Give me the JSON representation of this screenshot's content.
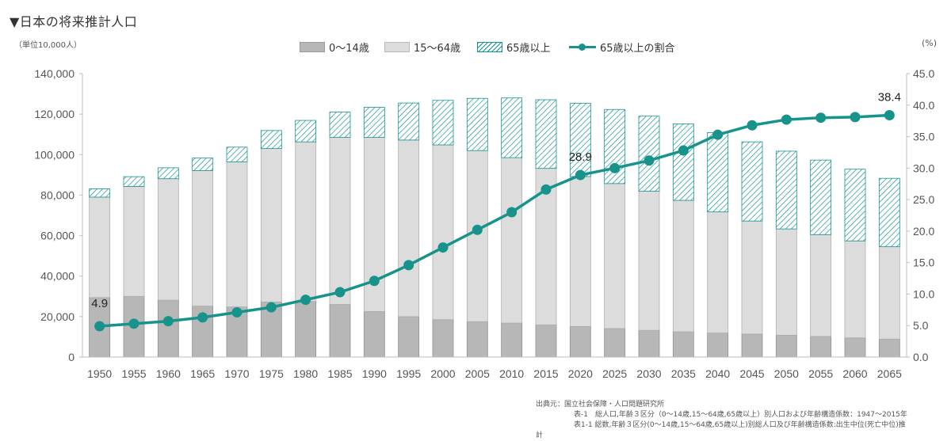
{
  "page_title": "▼日本の将来推計人口",
  "chart_data": {
    "type": "bar",
    "title": "日本の将来推計人口",
    "left_unit": "（単位10,000人）",
    "right_unit": "(%)",
    "categories": [
      "1950",
      "1955",
      "1960",
      "1965",
      "1970",
      "1975",
      "1980",
      "1985",
      "1990",
      "1995",
      "2000",
      "2005",
      "2010",
      "2015",
      "2020",
      "2025",
      "2030",
      "2035",
      "2040",
      "2045",
      "2050",
      "2055",
      "2060",
      "2065"
    ],
    "series": [
      {
        "name": "0〜14歳",
        "kind": "stacked-bar",
        "color": "#b7b7b7",
        "values": [
          29400,
          30000,
          28100,
          25200,
          24800,
          27200,
          27500,
          26000,
          22500,
          20000,
          18500,
          17500,
          16800,
          15900,
          15100,
          14100,
          13200,
          12500,
          11900,
          11400,
          10800,
          10200,
          9500,
          8900
        ]
      },
      {
        "name": "15〜64歳",
        "kind": "stacked-bar",
        "color": "#dcdcdc",
        "values": [
          49600,
          54300,
          60000,
          66900,
          71600,
          75800,
          78800,
          82500,
          86000,
          87200,
          86300,
          84500,
          81700,
          77300,
          74100,
          71600,
          68700,
          64900,
          59800,
          55800,
          52500,
          50300,
          47900,
          45600
        ]
      },
      {
        "name": "65歳以上",
        "kind": "stacked-bar",
        "color": "#17938c",
        "values": [
          4100,
          4800,
          5400,
          6200,
          7300,
          8900,
          10600,
          12500,
          14900,
          18300,
          22000,
          25800,
          29500,
          33900,
          36200,
          36600,
          37100,
          37800,
          39200,
          39100,
          38400,
          36800,
          35400,
          33800
        ]
      },
      {
        "name": "65歳以上の割合",
        "kind": "line",
        "color": "#17938c",
        "axis": "right",
        "values": [
          4.9,
          5.3,
          5.7,
          6.3,
          7.1,
          7.9,
          9.1,
          10.3,
          12.1,
          14.6,
          17.4,
          20.2,
          23.0,
          26.6,
          28.9,
          30.0,
          31.2,
          32.8,
          35.3,
          36.8,
          37.7,
          38.0,
          38.1,
          38.4
        ]
      }
    ],
    "y_left": {
      "min": 0,
      "max": 140000,
      "ticks": [
        "0",
        "20,000",
        "40,000",
        "60,000",
        "80,000",
        "100,000",
        "120,000",
        "140,000"
      ]
    },
    "y_right": {
      "min": 0,
      "max": 45,
      "ticks": [
        "0.0",
        "5.0",
        "10.0",
        "15.0",
        "20.0",
        "25.0",
        "30.0",
        "35.0",
        "40.0",
        "45.0"
      ]
    },
    "annotations": [
      {
        "category": "1950",
        "label": "4.9"
      },
      {
        "category": "2020",
        "label": "28.9"
      },
      {
        "category": "2065",
        "label": "38.4"
      }
    ],
    "gridlines": false,
    "legend_position": "top"
  },
  "source": {
    "line0": "出典元：国立社会保障・人口問題研究所",
    "line1": "表-1　総人口,年齢３区分（0〜14歳,15〜64歳,65歳以上）別人口および年齢構造係数：1947〜2015年",
    "line2": "表1-1 総数,年齢３区分(0〜14歳,15〜64歳,65歳以上)別総人口及び年齢構造係数:出生中位(死亡中位)推",
    "line3": "計"
  }
}
